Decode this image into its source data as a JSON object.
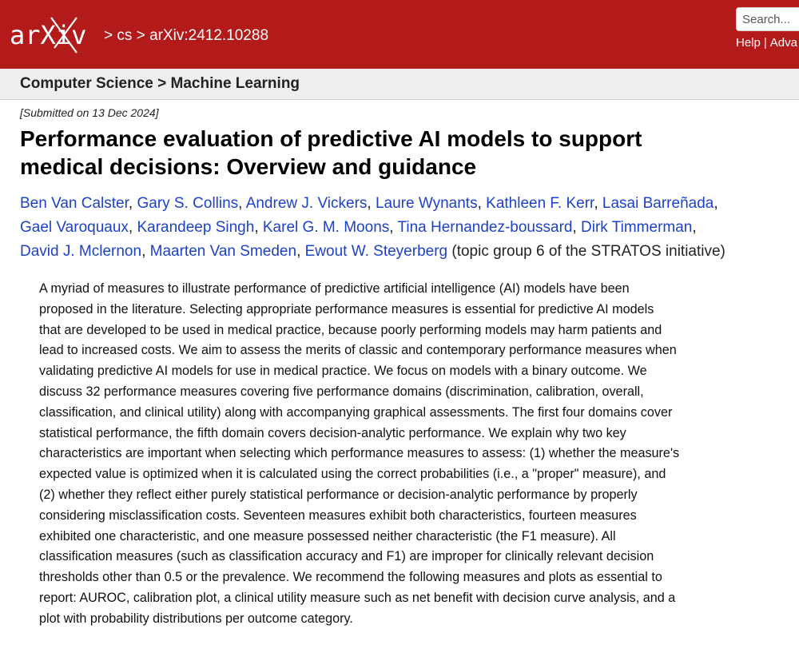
{
  "header": {
    "logo_text": "arXiv",
    "breadcrumb": [
      "cs",
      "arXiv:2412.10288"
    ],
    "search_placeholder": "Search...",
    "links": [
      "Help",
      "Adva"
    ]
  },
  "subnav": {
    "category": "Computer Science",
    "subcategory": "Machine Learning"
  },
  "paper": {
    "submitted": "[Submitted on 13 Dec 2024]",
    "title_lines": [
      "Performance evaluation of predictive AI models to support",
      "medical decisions: Overview and guidance"
    ],
    "authors": [
      "Ben Van Calster",
      "Gary S. Collins",
      "Andrew J. Vickers",
      "Laure Wynants",
      "Kathleen F. Kerr",
      "Lasai Barreñada",
      "Gael Varoquaux",
      "Karandeep Singh",
      "Karel G. M. Moons",
      "Tina Hernandez-boussard",
      "Dirk Timmerman",
      "David J. Mclernon",
      "Maarten Van Smeden",
      "Ewout W. Steyerberg"
    ],
    "author_note": "(topic group 6 of the STRATOS initiative)",
    "abstract_lines": [
      "A myriad of measures to illustrate performance of predictive artificial intelligence (AI) models have been",
      "proposed in the literature. Selecting appropriate performance measures is essential for predictive AI models",
      "that are developed to be used in medical practice, because poorly performing models may harm patients and",
      "lead to increased costs. We aim to assess the merits of classic and contemporary performance measures when",
      "validating predictive AI models for use in medical practice. We focus on models with a binary outcome. We",
      "discuss 32 performance measures covering five performance domains (discrimination, calibration, overall,",
      "classification, and clinical utility) along with accompanying graphical assessments. The first four domains cover",
      "statistical performance, the fifth domain covers decision-analytic performance. We explain why two key",
      "characteristics are important when selecting which performance measures to assess: (1) whether the measure's",
      "expected value is optimized when it is calculated using the correct probabilities (i.e., a \"proper\" measure), and",
      "(2) whether they reflect either purely statistical performance or decision-analytic performance by properly",
      "considering misclassification costs. Seventeen measures exhibit both characteristics, fourteen measures",
      "exhibited one characteristic, and one measure possessed neither characteristic (the F1 measure). All",
      "classification measures (such as classification accuracy and F1) are improper for clinically relevant decision",
      "thresholds other than 0.5 or the prevalence. We recommend the following measures and plots as essential to",
      "report: AUROC, calibration plot, a clinical utility measure such as net benefit with decision curve analysis, and a",
      "plot with probability distributions per outcome category."
    ]
  },
  "colors": {
    "header_bg": "#b31b1b",
    "link": "#1d42c7",
    "subnav_bg": "#eeeeee"
  }
}
